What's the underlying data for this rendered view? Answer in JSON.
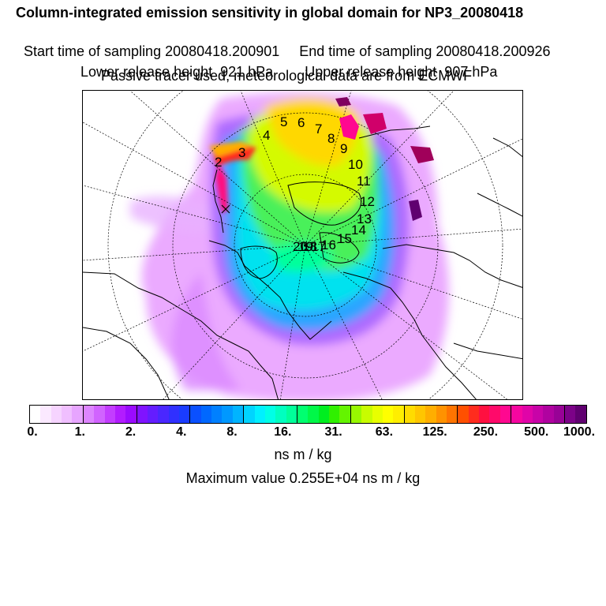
{
  "header": {
    "title": "Column-integrated emission sensitivity in global domain for NP3_20080418",
    "start_label": "Start time of sampling 20080418.200901",
    "end_label": "End time of sampling 20080418.200926",
    "lower_label": "Lower release height  921 hPa",
    "upper_label": "Upper release height  907 hPa",
    "tracer_note": "Passive tracer used, meteorological data are from ECMWF"
  },
  "trajectory_labels": [
    "2",
    "3",
    "4",
    "5",
    "6",
    "7",
    "8",
    "9",
    "10",
    "11",
    "12",
    "13",
    "14",
    "15",
    "16",
    "17",
    "18",
    "19",
    "20"
  ],
  "colorbar": {
    "tick_labels": [
      "0.",
      "1.",
      "2.",
      "4.",
      "8.",
      "16.",
      "31.",
      "63.",
      "125.",
      "250.",
      "500.",
      "1000."
    ],
    "colors": [
      "#ffffff",
      "#fbe9ff",
      "#f6d4ff",
      "#f0bfff",
      "#e7a5ff",
      "#dd85ff",
      "#d163ff",
      "#c33dff",
      "#b21cff",
      "#9a0bff",
      "#8013ff",
      "#641dff",
      "#4a27ff",
      "#3030ff",
      "#1a3cff",
      "#0a50ff",
      "#0068ff",
      "#0080ff",
      "#0098ff",
      "#00b4ff",
      "#00d4ff",
      "#00f0ff",
      "#00ffe6",
      "#00ffc0",
      "#00ff9a",
      "#00ff70",
      "#00f848",
      "#00ee20",
      "#30f000",
      "#64f400",
      "#98f800",
      "#c8fc00",
      "#e8ff00",
      "#ffff00",
      "#ffee00",
      "#ffdc00",
      "#ffc600",
      "#ffae00",
      "#ff9200",
      "#ff7400",
      "#ff5000",
      "#ff2c1e",
      "#ff1040",
      "#ff0a6a",
      "#ff0890",
      "#f606a0",
      "#e004a8",
      "#c803a8",
      "#b002a0",
      "#980296",
      "#7c0288",
      "#600070"
    ],
    "unit": "ns m / kg"
  },
  "max_value_text": "Maximum value  0.255E+04 ns m / kg"
}
